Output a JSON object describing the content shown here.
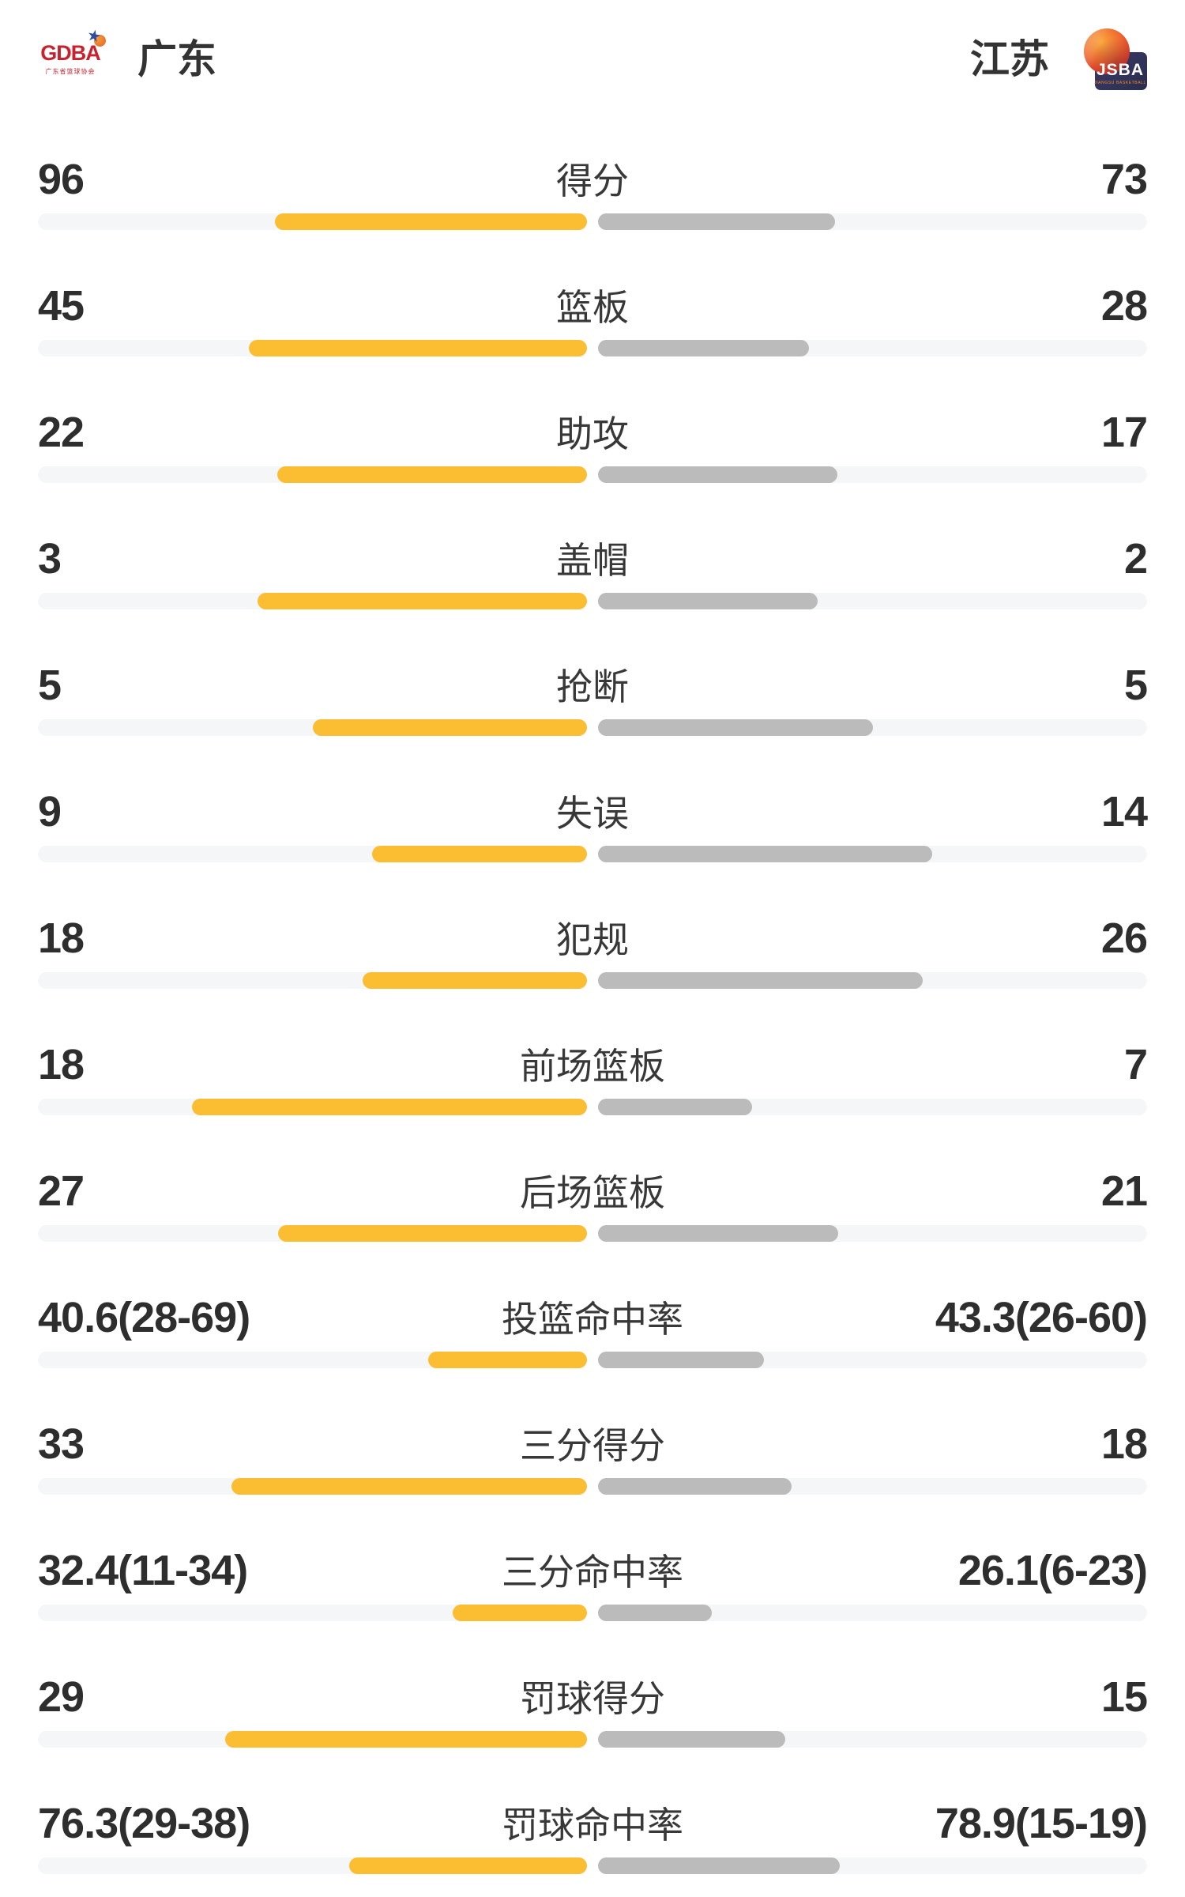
{
  "header": {
    "home": {
      "name": "广东",
      "logo": {
        "abbr": "GDBA",
        "subtitle": "广东省篮球协会",
        "star_icon": "★"
      }
    },
    "away": {
      "name": "江苏",
      "logo": {
        "abbr": "JSBA",
        "subtitle": "JIANGSU BASKETBALL"
      }
    }
  },
  "colors": {
    "home_bar": "#FBBE33",
    "away_bar": "#BBBBBB",
    "track": "#F5F6F8",
    "text": "#333333"
  },
  "chart_data": {
    "type": "bar",
    "orientation": "horizontal-paired",
    "legend_position": "none",
    "teams": [
      "广东",
      "江苏"
    ],
    "final_score": {
      "home": 96,
      "away": 73
    },
    "rows": [
      {
        "label": "得分",
        "home": "96",
        "away": "73",
        "home_fill": 56.8,
        "away_fill": 43.2
      },
      {
        "label": "篮板",
        "home": "45",
        "away": "28",
        "home_fill": 61.6,
        "away_fill": 38.4
      },
      {
        "label": "助攻",
        "home": "22",
        "away": "17",
        "home_fill": 56.4,
        "away_fill": 43.6
      },
      {
        "label": "盖帽",
        "home": "3",
        "away": "2",
        "home_fill": 60.0,
        "away_fill": 40.0
      },
      {
        "label": "抢断",
        "home": "5",
        "away": "5",
        "home_fill": 50.0,
        "away_fill": 50.0
      },
      {
        "label": "失误",
        "home": "9",
        "away": "14",
        "home_fill": 39.1,
        "away_fill": 60.9
      },
      {
        "label": "犯规",
        "home": "18",
        "away": "26",
        "home_fill": 40.9,
        "away_fill": 59.1
      },
      {
        "label": "前场篮板",
        "home": "18",
        "away": "7",
        "home_fill": 72.0,
        "away_fill": 28.0
      },
      {
        "label": "后场篮板",
        "home": "27",
        "away": "21",
        "home_fill": 56.3,
        "away_fill": 43.8
      },
      {
        "label": "投篮命中率",
        "home": "40.6(28-69)",
        "away": "43.3(26-60)",
        "home_fill": 28.9,
        "away_fill": 30.2
      },
      {
        "label": "三分得分",
        "home": "33",
        "away": "18",
        "home_fill": 64.7,
        "away_fill": 35.3
      },
      {
        "label": "三分命中率",
        "home": "32.4(11-34)",
        "away": "26.1(6-23)",
        "home_fill": 24.5,
        "away_fill": 20.7
      },
      {
        "label": "罚球得分",
        "home": "29",
        "away": "15",
        "home_fill": 65.9,
        "away_fill": 34.1
      },
      {
        "label": "罚球命中率",
        "home": "76.3(29-38)",
        "away": "78.9(15-19)",
        "home_fill": 43.3,
        "away_fill": 44.1
      }
    ]
  }
}
